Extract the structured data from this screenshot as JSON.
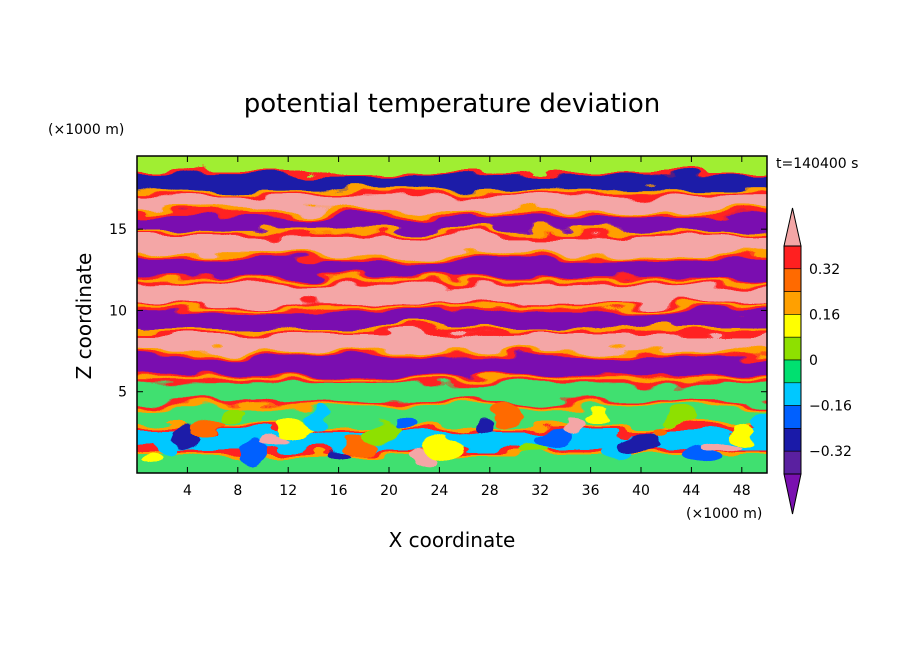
{
  "chart_data": {
    "type": "heatmap",
    "title": "potential temperature deviation",
    "xlabel": "X coordinate",
    "ylabel": "Z coordinate",
    "x_unit": "(×1000 m)",
    "y_unit": "(×1000 m)",
    "time_label": "t=140400 s",
    "xlim": [
      0,
      50
    ],
    "ylim": [
      0,
      19.5
    ],
    "x_ticks": [
      4,
      8,
      12,
      16,
      20,
      24,
      28,
      32,
      36,
      40,
      44,
      48
    ],
    "x_tick_labels": [
      "4",
      "8",
      "12",
      "16",
      "20",
      "24",
      "28",
      "32",
      "36",
      "40",
      "44",
      "48"
    ],
    "y_ticks": [
      5,
      10,
      15
    ],
    "y_tick_labels": [
      "5",
      "10",
      "15"
    ],
    "colorbar": {
      "levels": [
        -0.4,
        -0.32,
        -0.24,
        -0.16,
        -0.08,
        0,
        0.08,
        0.16,
        0.24,
        0.32,
        0.4
      ],
      "labeled_levels": [
        0.32,
        0.16,
        0,
        -0.16,
        -0.32
      ],
      "labels": [
        "0.32",
        "0.16",
        "0",
        "−0.16",
        "−0.32"
      ],
      "colors_top_to_bottom": [
        "#f4a6a6",
        "#ff2020",
        "#ff6a00",
        "#ffa000",
        "#ffff00",
        "#8ee000",
        "#00e070",
        "#00c8ff",
        "#0060ff",
        "#1a1aa8",
        "#5a20a0",
        "#7a10b0"
      ]
    },
    "layers": [
      {
        "z": 19.0,
        "band": "#a0ee30"
      },
      {
        "z": 17.8,
        "band": "#1a1aa8"
      },
      {
        "z": 16.6,
        "band": "#f4a6a6"
      },
      {
        "z": 15.2,
        "band": "#7a10b0"
      },
      {
        "z": 14.0,
        "band": "#f4a6a6"
      },
      {
        "z": 12.6,
        "band": "#7a10b0"
      },
      {
        "z": 11.0,
        "band": "#f4a6a6"
      },
      {
        "z": 9.4,
        "band": "#7a10b0"
      },
      {
        "z": 8.0,
        "band": "#f4a6a6"
      },
      {
        "z": 6.6,
        "band": "#7a10b0"
      },
      {
        "z": 5.0,
        "band": "#40e070"
      },
      {
        "z": 2.0,
        "band": "#00c8ff"
      }
    ]
  }
}
